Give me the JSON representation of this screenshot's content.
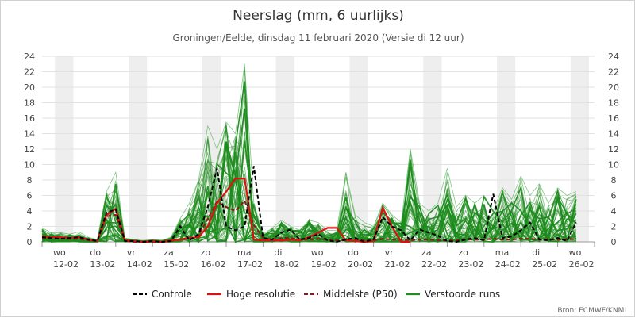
{
  "chart_data": {
    "type": "line",
    "title": "Neerslag (mm, 6 uurlijks)",
    "subtitle": "Groningen/Eelde, dinsdag 11 februari 2020 (Versie di 12 uur)",
    "source": "Bron: ECMWF/KNMI",
    "ylim": [
      0,
      24
    ],
    "yticks": [
      0,
      2,
      4,
      6,
      8,
      10,
      12,
      14,
      16,
      18,
      20,
      22,
      24
    ],
    "xlim": [
      0,
      15
    ],
    "grid": true,
    "legend_position": "bottom",
    "day_labels": [
      {
        "day": "wo",
        "date": "12-02"
      },
      {
        "day": "do",
        "date": "13-02"
      },
      {
        "day": "vr",
        "date": "14-02"
      },
      {
        "day": "za",
        "date": "15-02"
      },
      {
        "day": "zo",
        "date": "16-02"
      },
      {
        "day": "ma",
        "date": "17-02"
      },
      {
        "day": "di",
        "date": "18-02"
      },
      {
        "day": "wo",
        "date": "19-02"
      },
      {
        "day": "do",
        "date": "20-02"
      },
      {
        "day": "vr",
        "date": "21-02"
      },
      {
        "day": "za",
        "date": "22-02"
      },
      {
        "day": "zo",
        "date": "23-02"
      },
      {
        "day": "ma",
        "date": "24-02"
      },
      {
        "day": "di",
        "date": "25-02"
      },
      {
        "day": "wo",
        "date": "26-02"
      }
    ],
    "series": [
      {
        "name": "Controle",
        "color": "#000000",
        "style": "dashed",
        "x": [
          0,
          0.25,
          0.5,
          0.75,
          1,
          1.25,
          1.5,
          1.75,
          2,
          2.25,
          2.5,
          2.75,
          3,
          3.25,
          3.5,
          3.75,
          4,
          4.25,
          4.5,
          4.75,
          5,
          5.25,
          5.5,
          5.75,
          6,
          6.25,
          6.5,
          6.75,
          7,
          7.25,
          7.5,
          7.75,
          8,
          8.25,
          8.5,
          8.75,
          9,
          9.25,
          9.5,
          9.75,
          10,
          10.25,
          10.5,
          10.75,
          11,
          11.25,
          11.5,
          11.75,
          12,
          12.25,
          12.5,
          12.75,
          13,
          13.25,
          13.5,
          13.75,
          14,
          14.25,
          14.5
        ],
        "values": [
          0.6,
          0.5,
          0.4,
          0.5,
          0.6,
          0.3,
          0.1,
          3.8,
          4.2,
          0.1,
          0.1,
          0.0,
          0.1,
          0.0,
          0.1,
          2.0,
          0.2,
          1.0,
          4.5,
          9.5,
          2.0,
          1.5,
          2.0,
          9.8,
          0.5,
          0.3,
          1.2,
          1.6,
          0.3,
          0.5,
          1.0,
          0.2,
          0.0,
          0.3,
          0.5,
          0.0,
          0.3,
          3.2,
          2.0,
          1.5,
          0.2,
          1.6,
          1.2,
          0.8,
          0.1,
          0.0,
          0.3,
          0.5,
          0.2,
          6.2,
          0.5,
          0.7,
          1.5,
          2.5,
          0.3,
          0.2,
          0.5,
          0.1,
          2.5
        ]
      },
      {
        "name": "Hoge resolutie",
        "color": "#dd1111",
        "style": "solid",
        "x": [
          0,
          0.25,
          0.5,
          0.75,
          1,
          1.25,
          1.5,
          1.75,
          2,
          2.25,
          2.5,
          2.75,
          3,
          3.25,
          3.5,
          3.75,
          4,
          4.25,
          4.5,
          4.75,
          5,
          5.25,
          5.5,
          5.75,
          6,
          6.25,
          6.5,
          6.75,
          7,
          7.25,
          7.5,
          7.75,
          8,
          8.25,
          8.5,
          8.75,
          9,
          9.25,
          9.5,
          9.75,
          10
        ],
        "values": [
          0.7,
          0.6,
          0.6,
          0.5,
          0.6,
          0.3,
          0.1,
          3.5,
          4.3,
          0.2,
          0.1,
          0.0,
          0.1,
          0.0,
          0.2,
          0.3,
          0.5,
          0.6,
          2.0,
          5.0,
          6.5,
          8.2,
          8.2,
          0.3,
          0.2,
          0.2,
          0.2,
          0.3,
          0.2,
          0.6,
          1.2,
          1.8,
          1.8,
          0.2,
          0.1,
          0.0,
          0.1,
          4.4,
          2.0,
          0.0,
          0.0
        ]
      },
      {
        "name": "Middelste (P50)",
        "color": "#8b1a1a",
        "style": "dashed",
        "x": [
          0,
          0.25,
          0.5,
          0.75,
          1,
          1.25,
          1.5,
          1.75,
          2,
          2.25,
          2.5,
          2.75,
          3,
          3.25,
          3.5,
          3.75,
          4,
          4.25,
          4.5,
          4.75,
          5,
          5.25,
          5.5,
          5.75,
          6,
          6.25,
          6.5,
          6.75,
          7,
          7.25,
          7.5,
          7.75,
          8,
          8.25,
          8.5,
          8.75,
          9,
          9.25,
          9.5,
          9.75,
          10,
          10.25,
          10.5,
          10.75,
          11,
          11.25,
          11.5,
          11.75,
          12,
          12.25,
          12.5,
          12.75,
          13,
          13.25,
          13.5,
          13.75,
          14,
          14.25,
          14.5
        ],
        "values": [
          0.5,
          0.5,
          0.4,
          0.4,
          0.4,
          0.2,
          0.1,
          3.3,
          3.5,
          0.1,
          0.0,
          0.0,
          0.0,
          0.0,
          0.1,
          0.3,
          0.4,
          0.8,
          3.0,
          5.2,
          4.5,
          4.0,
          5.3,
          2.2,
          0.5,
          0.3,
          0.5,
          0.5,
          0.3,
          0.3,
          0.4,
          0.3,
          0.2,
          0.2,
          0.3,
          0.2,
          0.2,
          0.4,
          0.3,
          0.3,
          0.2,
          0.3,
          0.3,
          0.2,
          0.2,
          0.2,
          0.3,
          0.3,
          0.3,
          0.4,
          0.3,
          0.3,
          0.4,
          0.4,
          0.3,
          0.3,
          0.3,
          0.3,
          0.4
        ]
      },
      {
        "name": "Verstoorde runs",
        "color": "#1e8c1e",
        "style": "solid",
        "members": 50,
        "x": [
          0,
          0.25,
          0.5,
          0.75,
          1,
          1.25,
          1.5,
          1.75,
          2,
          2.25,
          2.5,
          2.75,
          3,
          3.25,
          3.5,
          3.75,
          4,
          4.25,
          4.5,
          4.75,
          5,
          5.25,
          5.5,
          5.75,
          6,
          6.25,
          6.5,
          6.75,
          7,
          7.25,
          7.5,
          7.75,
          8,
          8.25,
          8.5,
          8.75,
          9,
          9.25,
          9.5,
          9.75,
          10,
          10.25,
          10.5,
          10.75,
          11,
          11.25,
          11.5,
          11.75,
          12,
          12.25,
          12.5,
          12.75,
          13,
          13.25,
          13.5,
          13.75,
          14,
          14.25,
          14.5
        ],
        "envelope_max": [
          1.8,
          1.2,
          1.2,
          1.0,
          1.3,
          0.6,
          0.3,
          6.5,
          9.0,
          0.5,
          0.3,
          0.2,
          0.3,
          0.2,
          0.6,
          3.0,
          5.0,
          8.0,
          15.0,
          12.0,
          15.5,
          14.0,
          23.0,
          5.0,
          1.0,
          1.8,
          2.8,
          2.0,
          1.5,
          2.8,
          2.5,
          1.5,
          1.5,
          9.0,
          3.5,
          2.5,
          2.0,
          5.0,
          3.5,
          2.5,
          12.0,
          5.0,
          4.0,
          5.0,
          9.5,
          4.5,
          6.0,
          5.0,
          6.0,
          4.0,
          7.0,
          5.5,
          8.5,
          6.0,
          7.5,
          5.0,
          7.0,
          6.0,
          6.5
        ]
      }
    ]
  },
  "legend": [
    {
      "label": "Controle"
    },
    {
      "label": "Hoge resolutie"
    },
    {
      "label": "Middelste (P50)"
    },
    {
      "label": "Verstoorde runs"
    }
  ]
}
